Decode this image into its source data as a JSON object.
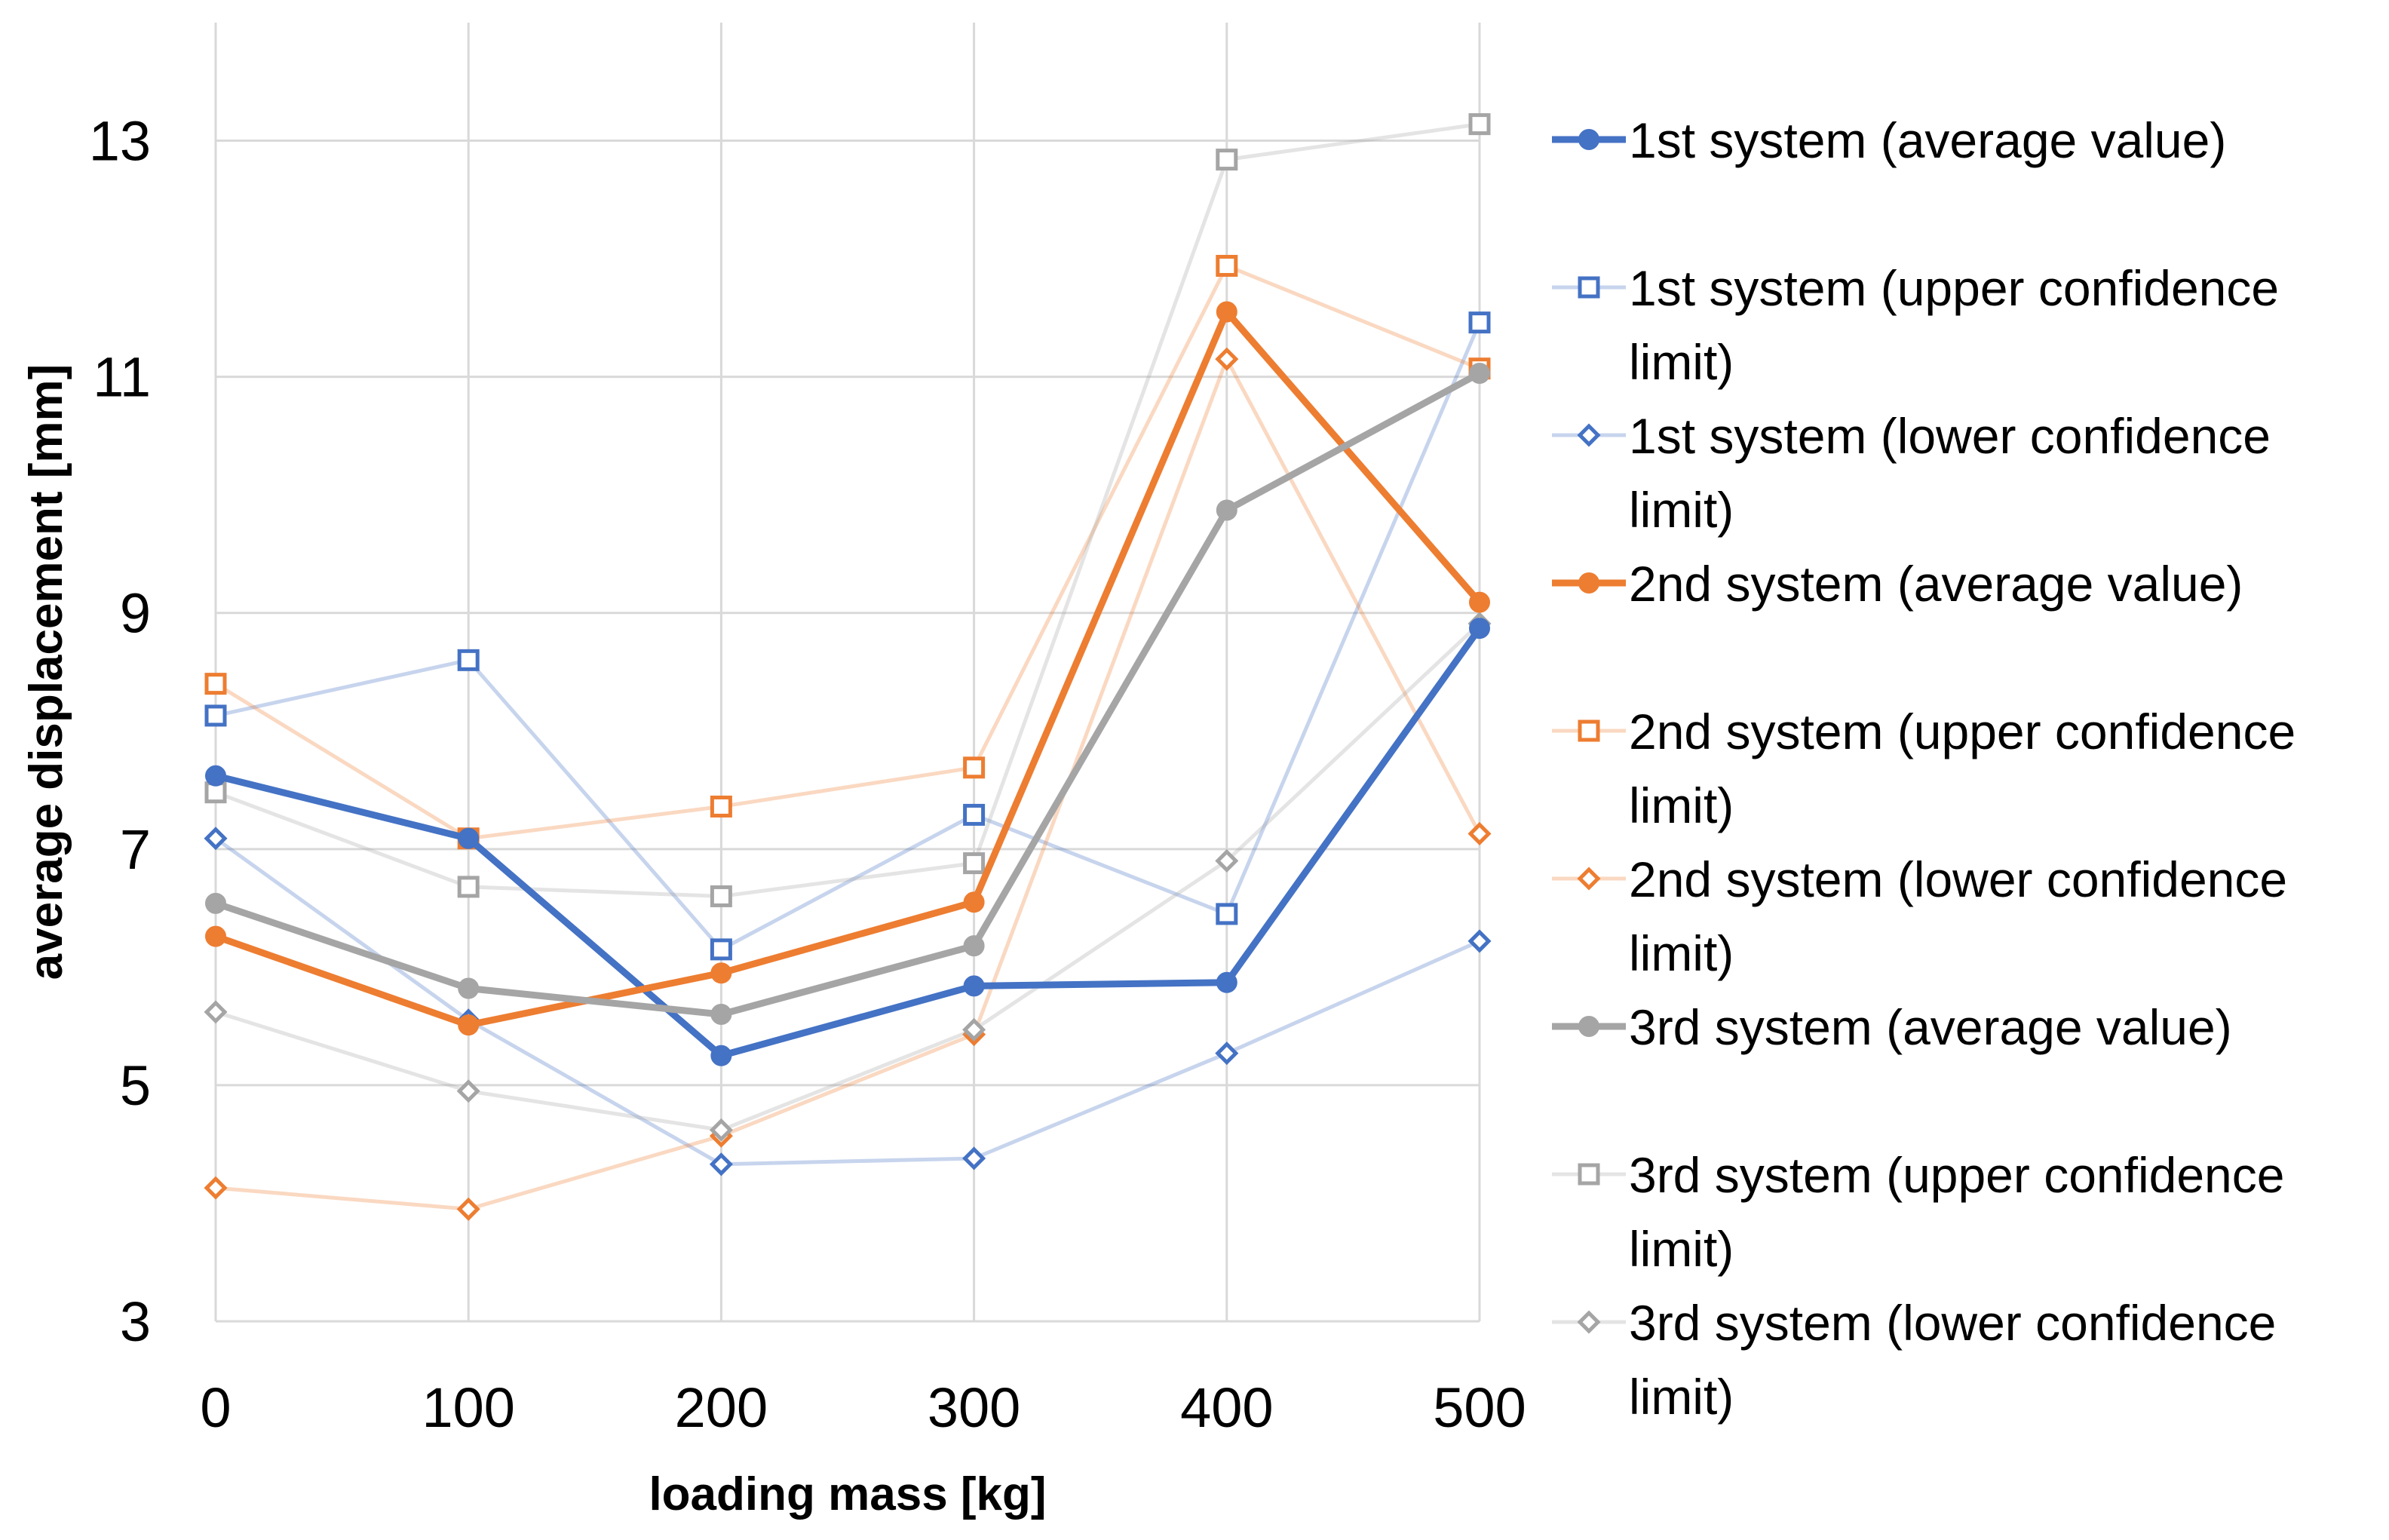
{
  "chart_data": {
    "type": "line",
    "xlabel": "loading mass [kg]",
    "ylabel": "average displacement [mm]",
    "x": [
      0,
      100,
      200,
      300,
      400,
      500
    ],
    "x_tick_labels": [
      "0",
      "100",
      "200",
      "300",
      "400",
      "500"
    ],
    "ylim": [
      3,
      14
    ],
    "y_ticks": [
      3,
      5,
      7,
      9,
      11,
      13
    ],
    "y_tick_labels": [
      "3",
      "5",
      "7",
      "9",
      "11",
      "13"
    ],
    "grid": true,
    "legend_position": "right",
    "series": [
      {
        "name": "1st system (average value)",
        "legend_lines": [
          "1st system (average value)"
        ],
        "color": "#4472c4",
        "marker": "circle",
        "style": "main",
        "values": [
          7.62,
          7.09,
          5.25,
          5.84,
          5.87,
          8.87
        ]
      },
      {
        "name": "1st system (upper confidence limit)",
        "legend_lines": [
          "1st system (upper confidence",
          "limit)"
        ],
        "color": "#4472c4",
        "marker": "square",
        "style": "faint",
        "values": [
          8.13,
          8.6,
          6.15,
          7.29,
          6.45,
          11.46
        ]
      },
      {
        "name": "1st system (lower confidence limit)",
        "legend_lines": [
          "1st system (lower confidence",
          "limit)"
        ],
        "color": "#4472c4",
        "marker": "diamond",
        "style": "faint",
        "values": [
          7.09,
          5.55,
          4.33,
          4.38,
          5.27,
          6.22
        ]
      },
      {
        "name": "2nd system (average value)",
        "legend_lines": [
          "2nd system (average value)"
        ],
        "color": "#ed7d31",
        "marker": "circle",
        "style": "main",
        "values": [
          6.26,
          5.51,
          5.95,
          6.55,
          11.55,
          9.09
        ]
      },
      {
        "name": "2nd system (upper confidence limit)",
        "legend_lines": [
          "2nd system (upper confidence",
          "limit)"
        ],
        "color": "#ed7d31",
        "marker": "square",
        "style": "faint",
        "values": [
          8.4,
          7.09,
          7.36,
          7.69,
          11.94,
          11.07
        ]
      },
      {
        "name": "2nd system (lower confidence limit)",
        "legend_lines": [
          "2nd system (lower confidence",
          "limit)"
        ],
        "color": "#ed7d31",
        "marker": "diamond",
        "style": "faint",
        "values": [
          4.13,
          3.95,
          4.57,
          5.43,
          11.15,
          7.13
        ]
      },
      {
        "name": "3rd system (average value)",
        "legend_lines": [
          "3rd system (average value)"
        ],
        "color": "#a5a5a5",
        "marker": "circle",
        "style": "main",
        "values": [
          6.54,
          5.82,
          5.6,
          6.18,
          9.87,
          11.03
        ]
      },
      {
        "name": "3rd system (upper confidence limit)",
        "legend_lines": [
          "3rd system (upper confidence",
          "limit)"
        ],
        "color": "#a5a5a5",
        "marker": "square",
        "style": "faint",
        "values": [
          7.48,
          6.68,
          6.6,
          6.88,
          12.84,
          13.14
        ]
      },
      {
        "name": "3rd system (lower confidence limit)",
        "legend_lines": [
          "3rd system (lower confidence",
          "limit)"
        ],
        "color": "#a5a5a5",
        "marker": "diamond",
        "style": "faint",
        "values": [
          5.62,
          4.95,
          4.62,
          5.47,
          6.9,
          8.91
        ]
      }
    ]
  }
}
